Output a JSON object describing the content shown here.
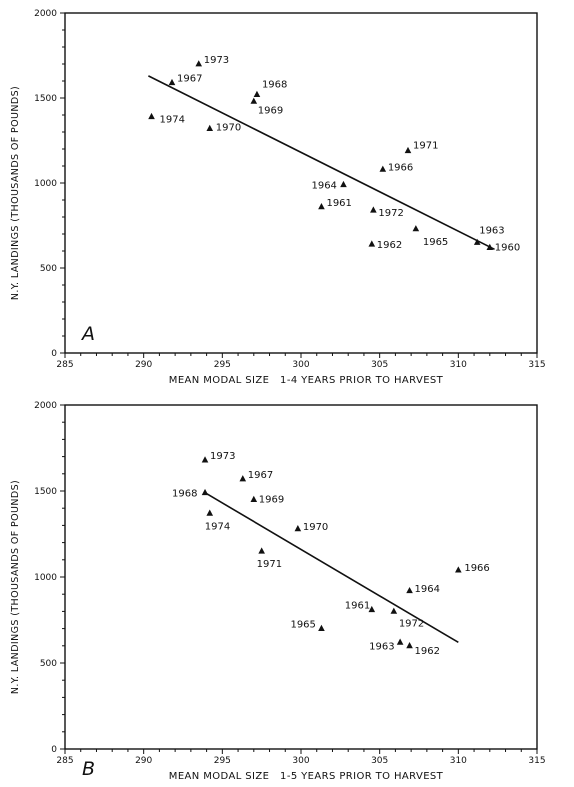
{
  "chart_data": [
    {
      "type": "scatter",
      "panel_label": "A",
      "xlabel": "MEAN MODAL SIZE   1-4 YEARS PRIOR TO HARVEST",
      "ylabel": "N.Y. LANDINGS (THOUSANDS OF POUNDS)",
      "xlim": [
        285,
        315
      ],
      "ylim": [
        0,
        2000
      ],
      "xticks": [
        "285",
        "290",
        "295",
        "300",
        "305",
        "310",
        "315"
      ],
      "yticks": [
        "0",
        "500",
        "1000",
        "1500",
        "2000"
      ],
      "points": [
        {
          "year": "1973",
          "x": 293.5,
          "y": 1700
        },
        {
          "year": "1967",
          "x": 291.8,
          "y": 1590
        },
        {
          "year": "1968",
          "x": 297.2,
          "y": 1520
        },
        {
          "year": "1969",
          "x": 297.0,
          "y": 1480
        },
        {
          "year": "1974",
          "x": 290.5,
          "y": 1390
        },
        {
          "year": "1970",
          "x": 294.2,
          "y": 1320
        },
        {
          "year": "1971",
          "x": 306.8,
          "y": 1190
        },
        {
          "year": "1966",
          "x": 305.2,
          "y": 1080
        },
        {
          "year": "1964",
          "x": 302.7,
          "y": 990
        },
        {
          "year": "1961",
          "x": 301.3,
          "y": 860
        },
        {
          "year": "1972",
          "x": 304.6,
          "y": 840
        },
        {
          "year": "1965",
          "x": 307.3,
          "y": 730
        },
        {
          "year": "1963",
          "x": 311.2,
          "y": 650
        },
        {
          "year": "1962",
          "x": 304.5,
          "y": 640
        },
        {
          "year": "1960",
          "x": 312.0,
          "y": 620
        }
      ],
      "fit_line": {
        "x": [
          290.3,
          312.3
        ],
        "y": [
          1630,
          610
        ]
      }
    },
    {
      "type": "scatter",
      "panel_label": "B",
      "xlabel": "MEAN MODAL SIZE   1-5 YEARS PRIOR TO HARVEST",
      "ylabel": "N.Y. LANDINGS (THOUSANDS OF POUNDS)",
      "xlim": [
        285,
        315
      ],
      "ylim": [
        0,
        2000
      ],
      "xticks": [
        "285",
        "290",
        "295",
        "300",
        "305",
        "310",
        "315"
      ],
      "yticks": [
        "0",
        "500",
        "1000",
        "1500",
        "2000"
      ],
      "points": [
        {
          "year": "1973",
          "x": 293.9,
          "y": 1680
        },
        {
          "year": "1967",
          "x": 296.3,
          "y": 1570
        },
        {
          "year": "1968",
          "x": 293.9,
          "y": 1490
        },
        {
          "year": "1969",
          "x": 297.0,
          "y": 1450
        },
        {
          "year": "1974",
          "x": 294.2,
          "y": 1370
        },
        {
          "year": "1970",
          "x": 299.8,
          "y": 1280
        },
        {
          "year": "1971",
          "x": 297.5,
          "y": 1150
        },
        {
          "year": "1966",
          "x": 310.0,
          "y": 1040
        },
        {
          "year": "1964",
          "x": 306.9,
          "y": 920
        },
        {
          "year": "1961",
          "x": 304.5,
          "y": 810
        },
        {
          "year": "1972",
          "x": 305.9,
          "y": 800
        },
        {
          "year": "1965",
          "x": 301.3,
          "y": 700
        },
        {
          "year": "1963",
          "x": 306.3,
          "y": 620
        },
        {
          "year": "1962",
          "x": 306.9,
          "y": 600
        }
      ],
      "fit_line": {
        "x": [
          293.9,
          310.0
        ],
        "y": [
          1490,
          620
        ]
      }
    }
  ]
}
